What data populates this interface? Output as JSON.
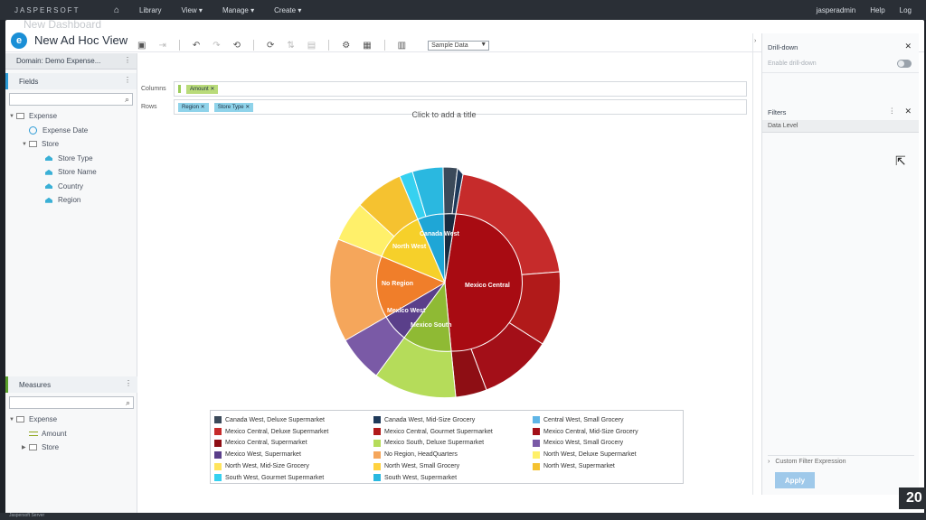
{
  "topnav": {
    "logo": "JASPERSOFT",
    "items": [
      "Library",
      "View ▾",
      "Manage ▾",
      "Create ▾"
    ],
    "user": "jasperadmin",
    "help": "Help",
    "logout": "Log"
  },
  "window": {
    "ghost_title": "New Dashboard",
    "title": "New Ad Hoc View"
  },
  "left": {
    "domain": "Domain: Demo Expense...",
    "fields_header": "Fields",
    "fields": {
      "expense": "Expense",
      "expense_date": "Expense Date",
      "store": "Store",
      "store_type": "Store Type",
      "store_name": "Store Name",
      "country": "Country",
      "region": "Region"
    },
    "measures_header": "Measures",
    "measures": {
      "expense": "Expense",
      "amount": "Amount",
      "store": "Store"
    }
  },
  "toolbar": {
    "select_value": "Sample Data"
  },
  "dropzones": {
    "columns_label": "Columns",
    "columns_pill": "Amount",
    "rows_label": "Rows",
    "rows_pills": [
      "Region",
      "Store Type"
    ]
  },
  "chart": {
    "title_placeholder": "Click to add a title",
    "inner_labels": [
      "Mexico Central",
      "No Region",
      "North West",
      "Mexico West",
      "Mexico South",
      "Canada West"
    ]
  },
  "legend": [
    {
      "label": "Canada West, Deluxe Supermarket",
      "color": "#3b4a5a"
    },
    {
      "label": "Canada West, Mid-Size Grocery",
      "color": "#1f3a5a"
    },
    {
      "label": "Central West, Small Grocery",
      "color": "#5fb5e6"
    },
    {
      "label": "Mexico Central, Deluxe Supermarket",
      "color": "#c62b2b"
    },
    {
      "label": "Mexico Central, Gourmet Supermarket",
      "color": "#b11a1a"
    },
    {
      "label": "Mexico Central, Mid-Size Grocery",
      "color": "#a30f18"
    },
    {
      "label": "Mexico Central, Supermarket",
      "color": "#8e0e14"
    },
    {
      "label": "Mexico South, Deluxe Supermarket",
      "color": "#b5dc5a"
    },
    {
      "label": "Mexico West, Small Grocery",
      "color": "#7a5aa6"
    },
    {
      "label": "Mexico West, Supermarket",
      "color": "#5a3f8a"
    },
    {
      "label": "No Region, HeadQuarters",
      "color": "#f5a65b"
    },
    {
      "label": "North West, Deluxe Supermarket",
      "color": "#fff06a"
    },
    {
      "label": "North West, Mid-Size Grocery",
      "color": "#ffe45c"
    },
    {
      "label": "North West, Small Grocery",
      "color": "#ffd23f"
    },
    {
      "label": "North West, Supermarket",
      "color": "#f5c230"
    },
    {
      "label": "South West, Gourmet Supermarket",
      "color": "#36d1f0"
    },
    {
      "label": "South West, Supermarket",
      "color": "#2ab8e0"
    }
  ],
  "right": {
    "drilldown_header": "Drill-down",
    "enable_drilldown": "Enable drill-down",
    "filters_header": "Filters",
    "data_level": "Data Level",
    "custom_filter": "Custom Filter Expression",
    "apply": "Apply"
  },
  "badge": "20",
  "footer": "Jaspersoft Server"
}
